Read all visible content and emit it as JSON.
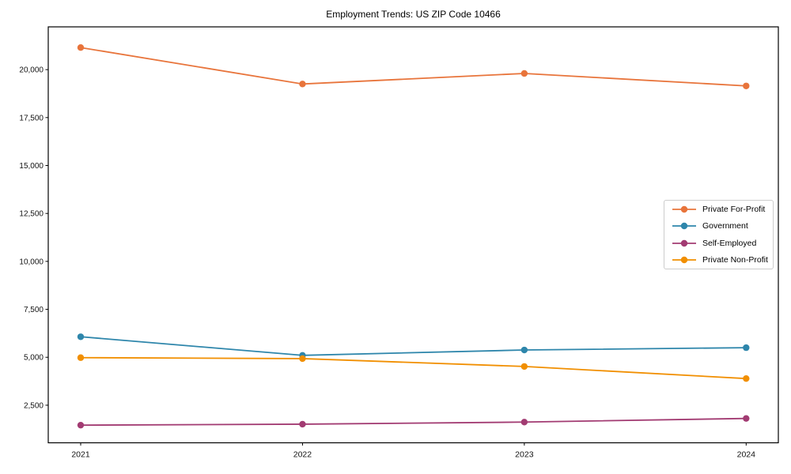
{
  "chart_data": {
    "type": "line",
    "title": "Employment Trends: US ZIP Code 10466",
    "categories": [
      "2021",
      "2022",
      "2023",
      "2024"
    ],
    "series": [
      {
        "name": "Private For-Profit",
        "color": "#e8743b",
        "values": [
          21150,
          19250,
          19800,
          19150
        ]
      },
      {
        "name": "Government",
        "color": "#2e86ab",
        "values": [
          6070,
          5100,
          5380,
          5500
        ]
      },
      {
        "name": "Self-Employed",
        "color": "#a23b72",
        "values": [
          1460,
          1510,
          1620,
          1810
        ]
      },
      {
        "name": "Private Non-Profit",
        "color": "#f18f01",
        "values": [
          4980,
          4930,
          4520,
          3890
        ]
      }
    ],
    "yticks": [
      {
        "value": 2500,
        "label": "2,500"
      },
      {
        "value": 5000,
        "label": "5,000"
      },
      {
        "value": 7500,
        "label": "7,500"
      },
      {
        "value": 10000,
        "label": "10,000"
      },
      {
        "value": 12500,
        "label": "12,500"
      },
      {
        "value": 15000,
        "label": "15,000"
      },
      {
        "value": 17500,
        "label": "17,500"
      },
      {
        "value": 20000,
        "label": "20,000"
      }
    ],
    "ylim": [
      540,
      22230
    ],
    "xlabel": "",
    "ylabel": "",
    "grid": false,
    "legend_position": "center-right",
    "marker": "circle",
    "axis_color": "#000000",
    "legend_border_color": "#cccccc"
  }
}
